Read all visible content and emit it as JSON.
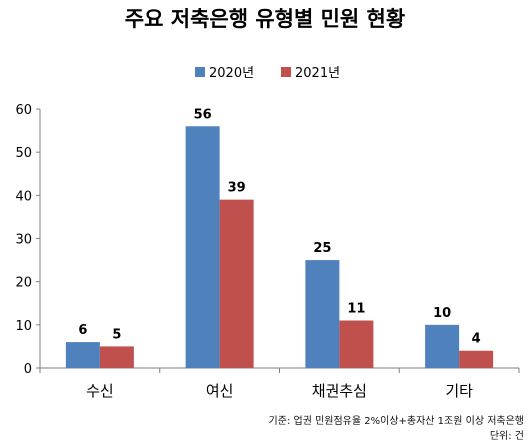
{
  "chart_data": {
    "type": "bar",
    "title": "주요 저축은행 유형별 민원 현황",
    "categories": [
      "수신",
      "여신",
      "채권추심",
      "기타"
    ],
    "series": [
      {
        "name": "2020년",
        "values": [
          6,
          56,
          25,
          10
        ],
        "color": "#4F81BD"
      },
      {
        "name": "2021년",
        "values": [
          5,
          39,
          11,
          4
        ],
        "color": "#C0504D"
      }
    ],
    "ylim": [
      0,
      60
    ],
    "yticks": [
      0,
      10,
      20,
      30,
      40,
      50,
      60
    ],
    "grid": false,
    "legend_position": "top"
  },
  "footnote": {
    "criteria": "기준: 업권 민원점유율 2%이상+총자산 1조원 이상 저축은행",
    "unit": "단위: 건"
  }
}
